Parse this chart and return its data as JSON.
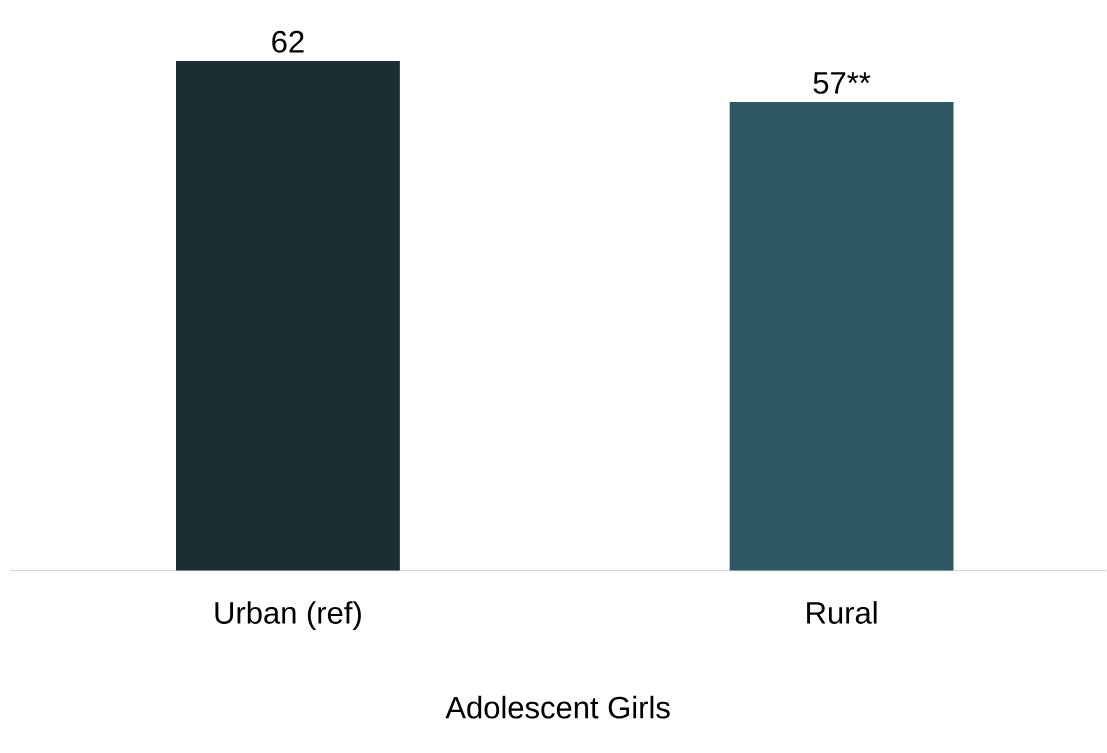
{
  "chart_data": {
    "type": "bar",
    "xlabel": "Adolescent Girls",
    "categories": [
      "Urban (ref)",
      "Rural"
    ],
    "values": [
      62,
      57
    ],
    "colors": [
      "#1c2e33",
      "#2e5863"
    ],
    "value_labels": [
      "62",
      "57**"
    ]
  }
}
